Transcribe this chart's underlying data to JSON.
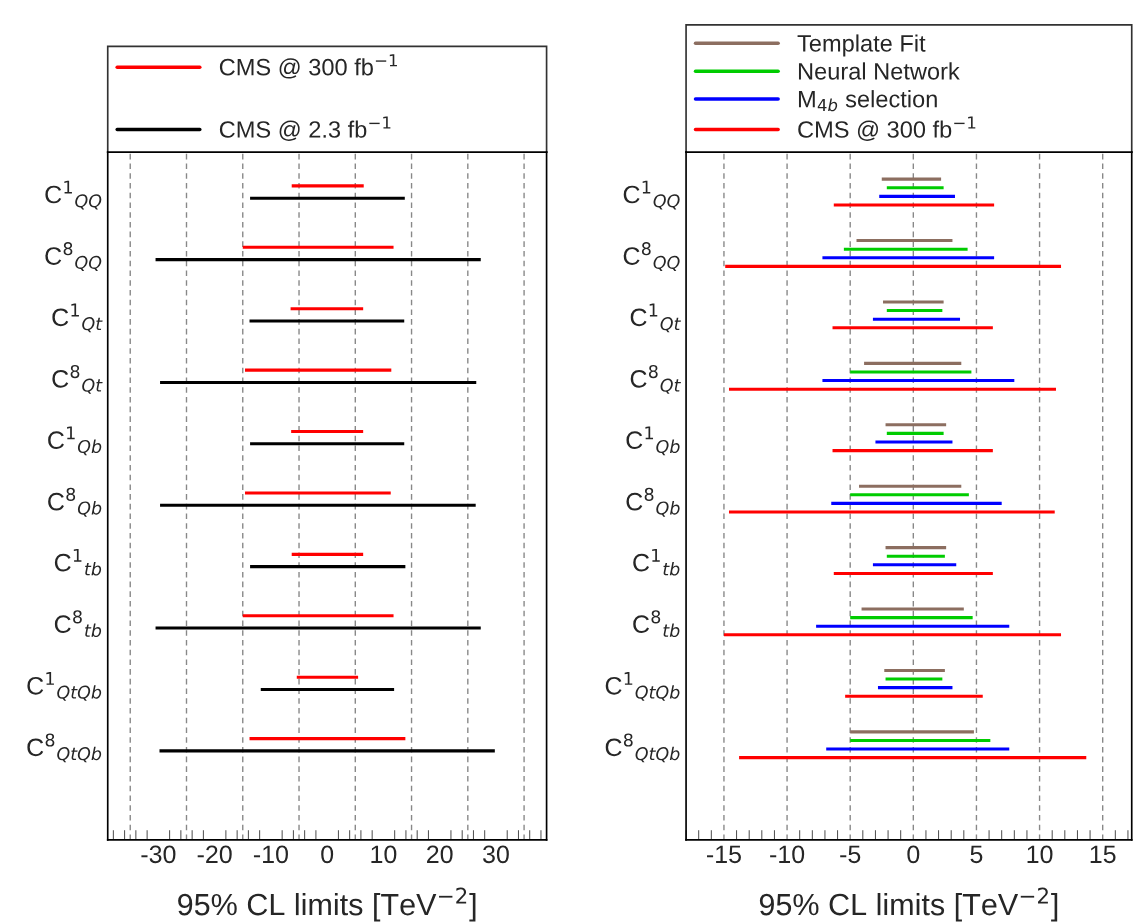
{
  "chart_data": [
    {
      "type": "bar",
      "orientation": "horizontal",
      "xlabel": "95% CL limits [TeV$^{−2}$]",
      "categories": [
        "C$^{1}$$_{QQ}$",
        "C$^{8}$$_{QQ}$",
        "C$^{1}$$_{Qt}$",
        "C$^{8}$$_{Qt}$",
        "C$^{1}$$_{Qb}$",
        "C$^{8}$$_{Qb}$",
        "C$^{1}$$_{tb}$",
        "C$^{8}$$_{tb}$",
        "C$^{1}$$_{QtQb}$",
        "C$^{8}$$_{QtQb}$"
      ],
      "series": [
        {
          "name": "CMS @ 300 fb$^{−1}$",
          "color": "#ff0000",
          "base": [
            -6.3,
            -15.0,
            -6.5,
            -14.6,
            -6.4,
            -14.6,
            -6.3,
            -15.0,
            -5.4,
            -13.8
          ],
          "values": [
            12.8,
            26.8,
            12.9,
            26.0,
            12.8,
            25.9,
            12.7,
            26.8,
            10.9,
            27.7
          ]
        },
        {
          "name": "CMS @ 2.3 fb$^{−1}$",
          "color": "#000000",
          "base": [
            -13.7,
            -30.5,
            -13.8,
            -29.7,
            -13.7,
            -29.7,
            -13.7,
            -30.5,
            -11.8,
            -29.8
          ],
          "values": [
            27.5,
            57.8,
            27.5,
            56.2,
            27.4,
            56.1,
            27.6,
            57.8,
            23.7,
            59.6
          ]
        }
      ],
      "xlim": [
        -39,
        39
      ],
      "xticks": [
        -30,
        -20,
        -10,
        0,
        10,
        20,
        30
      ],
      "ref_lines": [
        {
          "axis": "x",
          "value": -35,
          "color": "#888888",
          "line_style": "dashed"
        },
        {
          "axis": "x",
          "value": -25,
          "color": "#888888",
          "line_style": "dashed"
        },
        {
          "axis": "x",
          "value": -15,
          "color": "#888888",
          "line_style": "dashed"
        },
        {
          "axis": "x",
          "value": -5,
          "color": "#888888",
          "line_style": "dashed"
        },
        {
          "axis": "x",
          "value": 5,
          "color": "#888888",
          "line_style": "dashed"
        },
        {
          "axis": "x",
          "value": 15,
          "color": "#888888",
          "line_style": "dashed"
        },
        {
          "axis": "x",
          "value": 25,
          "color": "#888888",
          "line_style": "dashed"
        },
        {
          "axis": "x",
          "value": 35,
          "color": "#888888",
          "line_style": "dashed"
        }
      ],
      "legend": "top"
    },
    {
      "type": "bar",
      "orientation": "horizontal",
      "xlabel": "95% CL limits [TeV$^{−2}$]",
      "categories": [
        "C$^{1}$$_{QQ}$",
        "C$^{8}$$_{QQ}$",
        "C$^{1}$$_{Qt}$",
        "C$^{8}$$_{Qt}$",
        "C$^{1}$$_{Qb}$",
        "C$^{8}$$_{Qb}$",
        "C$^{1}$$_{tb}$",
        "C$^{8}$$_{tb}$",
        "C$^{1}$$_{QtQb}$",
        "C$^{8}$$_{QtQb}$"
      ],
      "series": [
        {
          "name": "Template Fit",
          "color": "#8c6e60",
          "base": [
            -2.5,
            -4.5,
            -2.4,
            -3.9,
            -2.2,
            -4.3,
            -2.2,
            -4.1,
            -2.3,
            -5.0
          ],
          "values": [
            4.7,
            7.6,
            4.8,
            7.7,
            4.8,
            8.1,
            4.8,
            8.1,
            4.8,
            9.8
          ]
        },
        {
          "name": "Neural Network",
          "color": "#00cc00",
          "base": [
            -2.1,
            -5.5,
            -2.1,
            -5.0,
            -2.1,
            -5.0,
            -2.1,
            -5.0,
            -2.2,
            -5.0
          ],
          "values": [
            4.5,
            9.8,
            4.4,
            9.6,
            4.5,
            9.4,
            4.6,
            9.7,
            4.5,
            11.1
          ]
        },
        {
          "name": "M$_{4b}$ selection",
          "color": "#0000ff",
          "base": [
            -2.7,
            -7.2,
            -3.2,
            -7.2,
            -3.0,
            -6.5,
            -3.2,
            -7.7,
            -2.8,
            -6.9
          ],
          "values": [
            6.0,
            13.6,
            6.9,
            15.2,
            6.1,
            13.5,
            6.6,
            15.3,
            5.9,
            14.5
          ]
        },
        {
          "name": "CMS @ 300 fb$^{−1}$",
          "color": "#ff0000",
          "base": [
            -6.3,
            -14.9,
            -6.4,
            -14.6,
            -6.4,
            -14.6,
            -6.3,
            -15.0,
            -5.4,
            -13.8
          ],
          "values": [
            12.7,
            26.6,
            12.7,
            25.9,
            12.7,
            25.8,
            12.6,
            26.7,
            10.9,
            27.5
          ]
        }
      ],
      "xlim": [
        -18,
        17.3
      ],
      "xticks": [
        -15,
        -10,
        -5,
        0,
        5,
        10,
        15
      ],
      "grid": "x",
      "legend": "top"
    }
  ]
}
